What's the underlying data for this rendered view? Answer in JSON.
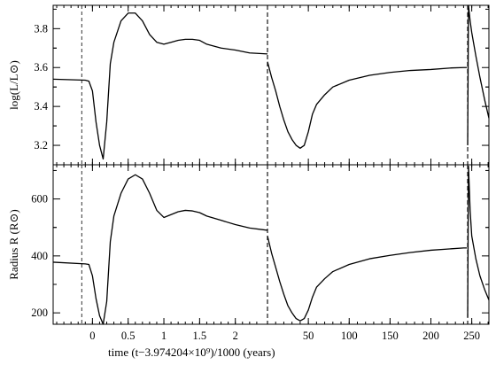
{
  "chart_data": [
    {
      "type": "line",
      "panel": "top",
      "ylabel": "log(L/L⊙)",
      "ylim": [
        3.1,
        3.92
      ],
      "y_ticks": [
        3.2,
        3.4,
        3.6,
        3.8
      ],
      "y_tick_labels": [
        "3.2",
        "3.4",
        "3.6",
        "3.8"
      ],
      "segments": [
        {
          "x_scale": "time_kyr_segment1",
          "x": [
            -0.55,
            -0.1,
            -0.05,
            0.0,
            0.05,
            0.1,
            0.15,
            0.2,
            0.25,
            0.3,
            0.4,
            0.5,
            0.6,
            0.7,
            0.8,
            0.9,
            1.0,
            1.1,
            1.2,
            1.3,
            1.4,
            1.5,
            1.6,
            1.8,
            2.0,
            2.2,
            2.45
          ],
          "y": [
            3.54,
            3.535,
            3.53,
            3.48,
            3.32,
            3.2,
            3.13,
            3.32,
            3.62,
            3.73,
            3.84,
            3.88,
            3.88,
            3.84,
            3.77,
            3.73,
            3.72,
            3.73,
            3.74,
            3.745,
            3.745,
            3.74,
            3.72,
            3.7,
            3.69,
            3.675,
            3.67
          ]
        },
        {
          "x_scale": "time_kyr_segment2",
          "x": [
            0,
            5,
            10,
            15,
            20,
            25,
            30,
            35,
            40,
            45,
            50,
            55,
            60,
            70,
            80,
            100,
            125,
            150,
            175,
            200,
            225,
            240,
            244
          ],
          "y": [
            3.63,
            3.55,
            3.48,
            3.4,
            3.33,
            3.27,
            3.23,
            3.2,
            3.185,
            3.2,
            3.27,
            3.36,
            3.41,
            3.46,
            3.5,
            3.535,
            3.56,
            3.575,
            3.585,
            3.59,
            3.598,
            3.6,
            3.6
          ]
        },
        {
          "x_scale": "time_kyr_segment2",
          "x": [
            245,
            246,
            248,
            250,
            255,
            260,
            266,
            271
          ],
          "y": [
            3.2,
            3.95,
            3.84,
            3.78,
            3.66,
            3.55,
            3.43,
            3.34
          ]
        }
      ]
    },
    {
      "type": "line",
      "panel": "bottom",
      "ylabel": "Radius  R  (R⊙)",
      "ylim": [
        160,
        720
      ],
      "y_ticks": [
        200,
        400,
        600
      ],
      "y_tick_labels": [
        "200",
        "400",
        "600"
      ],
      "segments": [
        {
          "x_scale": "time_kyr_segment1",
          "x": [
            -0.55,
            -0.1,
            -0.05,
            0.0,
            0.05,
            0.1,
            0.15,
            0.2,
            0.25,
            0.3,
            0.4,
            0.5,
            0.6,
            0.7,
            0.8,
            0.9,
            1.0,
            1.1,
            1.2,
            1.3,
            1.4,
            1.5,
            1.6,
            1.8,
            2.0,
            2.2,
            2.45
          ],
          "y": [
            378,
            372,
            370,
            330,
            250,
            190,
            155,
            240,
            450,
            540,
            620,
            670,
            685,
            670,
            620,
            560,
            535,
            545,
            555,
            560,
            558,
            552,
            540,
            525,
            510,
            498,
            490
          ]
        },
        {
          "x_scale": "time_kyr_segment2",
          "x": [
            0,
            5,
            10,
            15,
            20,
            25,
            30,
            35,
            40,
            45,
            50,
            55,
            60,
            70,
            80,
            100,
            125,
            150,
            175,
            200,
            225,
            240,
            244
          ],
          "y": [
            470,
            410,
            360,
            310,
            265,
            225,
            200,
            180,
            172,
            180,
            210,
            255,
            290,
            320,
            345,
            370,
            390,
            402,
            412,
            420,
            425,
            428,
            428
          ]
        },
        {
          "x_scale": "time_kyr_segment2",
          "x": [
            245,
            246,
            248,
            250,
            255,
            260,
            266,
            271
          ],
          "y": [
            185,
            715,
            560,
            470,
            390,
            330,
            280,
            245
          ]
        }
      ]
    }
  ],
  "x_axis": {
    "label": "time   (t−3.974204×10⁹)/1000   (years)",
    "tick_labels_segment1": [
      "0",
      "0.5",
      "1",
      "1.5",
      "2"
    ],
    "tick_values_segment1": [
      0,
      0.5,
      1,
      1.5,
      2
    ],
    "tick_labels_segment2": [
      "50",
      "100",
      "150",
      "200",
      "250"
    ],
    "tick_values_segment2": [
      50,
      100,
      150,
      200,
      250
    ],
    "segment1_range": [
      -0.55,
      2.45
    ],
    "segment2_range": [
      0,
      271
    ],
    "break_at_segment2_start": true
  },
  "reference_lines": [
    {
      "x_scale": "time_kyr_segment1",
      "x": -0.15,
      "style": "thin-dashed"
    },
    {
      "x_scale": "time_kyr_segment1",
      "x": 2.45,
      "style": "thick-dashed"
    },
    {
      "x_scale": "time_kyr_segment2",
      "x": 245,
      "style": "thick-dashed"
    }
  ]
}
